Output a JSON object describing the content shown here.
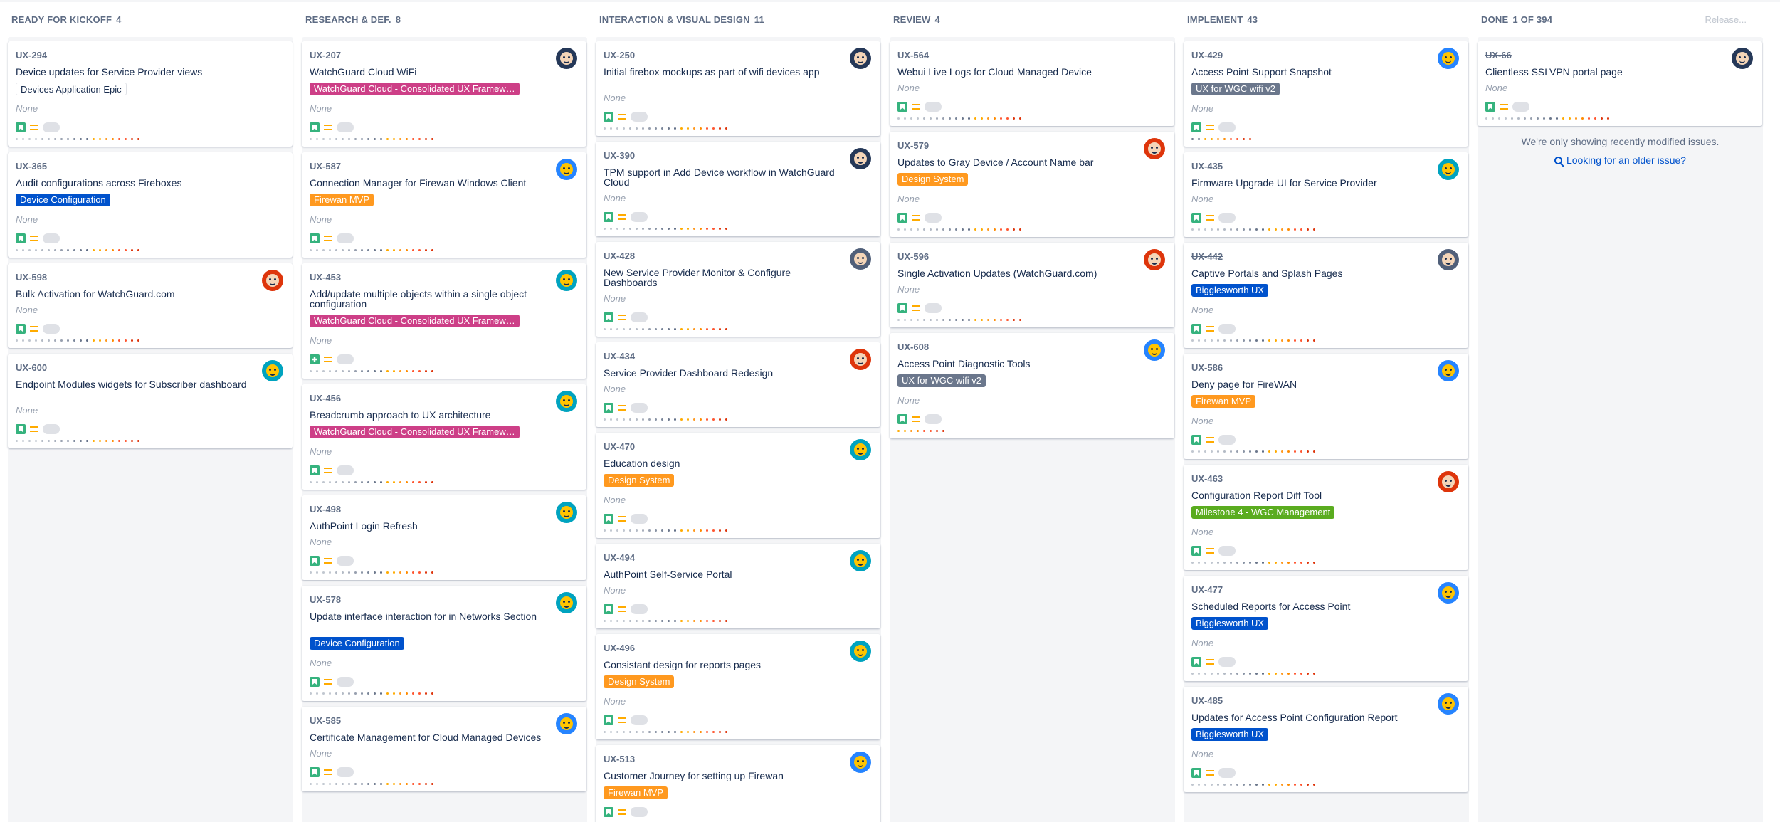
{
  "colors": {
    "dev_config": "#0052cc",
    "firewan_mvp": "#ff991f",
    "watchguard_cloud": "#cd3f87",
    "wgc_wifi": "#6b778c",
    "design_system": "#ff991f",
    "bigglesworth": "#0052cc",
    "milestone4": "#5aac1f"
  },
  "columns": [
    {
      "title": "READY FOR KICKOFF",
      "count": "4",
      "cards": [
        {
          "key": "UX-294",
          "summary": "Device updates for Service Provider views",
          "epic": "Devices Application Epic",
          "epic_style": "outline",
          "none": "None",
          "avatar": "",
          "dots": 20
        },
        {
          "key": "UX-365",
          "summary": "Audit configurations across Fireboxes",
          "epic": "Device Configuration",
          "epic_style": "dev_config",
          "none": "None",
          "avatar": "",
          "dots": 20
        },
        {
          "key": "UX-598",
          "summary": "Bulk Activation for WatchGuard.com",
          "epic": "",
          "none": "None",
          "avatar": "red",
          "dots": 20
        },
        {
          "key": "UX-600",
          "summary": "Endpoint Modules widgets for Subscriber dashboard",
          "epic": "",
          "none": "None",
          "avatar": "teal",
          "dots": 20
        }
      ]
    },
    {
      "title": "RESEARCH & DEF.",
      "count": "8",
      "cards": [
        {
          "key": "UX-207",
          "summary": "WatchGuard Cloud WiFi",
          "epic": "WatchGuard Cloud - Consolidated UX Framew…",
          "epic_style": "watchguard_cloud",
          "none": "None",
          "avatar": "navy",
          "dots": 20
        },
        {
          "key": "UX-587",
          "summary": "Connection Manager for Firewan Windows Client",
          "epic": "Firewan MVP",
          "epic_style": "firewan_mvp",
          "none": "None",
          "avatar": "blue",
          "dots": 20
        },
        {
          "key": "UX-453",
          "summary": "Add/update multiple objects within a single object configuration",
          "epic": "WatchGuard Cloud - Consolidated UX Framew…",
          "epic_style": "watchguard_cloud",
          "none": "None",
          "avatar": "teal",
          "dots": 20,
          "icon": "plus"
        },
        {
          "key": "UX-456",
          "summary": "Breadcrumb approach to UX architecture",
          "epic": "WatchGuard Cloud - Consolidated UX Framew…",
          "epic_style": "watchguard_cloud",
          "none": "None",
          "avatar": "teal",
          "dots": 20
        },
        {
          "key": "UX-498",
          "summary": "AuthPoint Login Refresh",
          "epic": "",
          "none": "None",
          "avatar": "teal",
          "dots": 20
        },
        {
          "key": "UX-578",
          "summary": "Update interface interaction for in Networks Section",
          "epic": "Device Configuration",
          "epic_style": "dev_config",
          "none": "None",
          "avatar": "teal",
          "dots": 20
        },
        {
          "key": "UX-585",
          "summary": "Certificate Management for Cloud Managed Devices",
          "epic": "",
          "none": "None",
          "avatar": "blue",
          "dots": 20
        }
      ]
    },
    {
      "title": "INTERACTION & VISUAL DESIGN",
      "count": "11",
      "cards": [
        {
          "key": "UX-250",
          "summary": "Initial firebox mockups as part of wifi devices app",
          "epic": "",
          "none": "None",
          "avatar": "navy",
          "dots": 20
        },
        {
          "key": "UX-390",
          "summary": "TPM support in Add Device workflow in WatchGuard Cloud",
          "epic": "",
          "none": "None",
          "avatar": "navy",
          "dots": 20
        },
        {
          "key": "UX-428",
          "summary": "New Service Provider Monitor & Configure Dashboards",
          "epic": "",
          "none": "None",
          "avatar": "dark",
          "dots": 20
        },
        {
          "key": "UX-434",
          "summary": "Service Provider Dashboard Redesign",
          "epic": "",
          "none": "None",
          "avatar": "red",
          "dots": 20
        },
        {
          "key": "UX-470",
          "summary": "Education design",
          "epic": "Design System",
          "epic_style": "design_system",
          "none": "None",
          "avatar": "teal",
          "dots": 20
        },
        {
          "key": "UX-494",
          "summary": "AuthPoint Self-Service Portal",
          "epic": "",
          "none": "None",
          "avatar": "teal",
          "dots": 20
        },
        {
          "key": "UX-496",
          "summary": "Consistant design for reports pages",
          "epic": "Design System",
          "epic_style": "design_system",
          "none": "None",
          "avatar": "teal",
          "dots": 20
        },
        {
          "key": "UX-513",
          "summary": "Customer Journey for setting up Firewan",
          "epic": "Firewan MVP",
          "epic_style": "firewan_mvp",
          "none": "",
          "avatar": "blue",
          "dots": 0
        }
      ]
    },
    {
      "title": "REVIEW",
      "count": "4",
      "cards": [
        {
          "key": "UX-564",
          "summary": "Webui Live Logs for Cloud Managed Device",
          "epic": "",
          "none": "None",
          "avatar": "",
          "dots": 20
        },
        {
          "key": "UX-579",
          "summary": "Updates to Gray Device / Account Name bar",
          "epic": "Design System",
          "epic_style": "design_system",
          "none": "None",
          "avatar": "red",
          "dots": 20
        },
        {
          "key": "UX-596",
          "summary": "Single Activation Updates (WatchGuard.com)",
          "epic": "",
          "none": "None",
          "avatar": "red",
          "dots": 20
        },
        {
          "key": "UX-608",
          "summary": "Access Point Diagnostic Tools",
          "epic": "UX for WGC wifi v2",
          "epic_style": "wgc_wifi",
          "none": "None",
          "avatar": "blue",
          "dots": 8
        }
      ]
    },
    {
      "title": "IMPLEMENT",
      "count": "43",
      "cards": [
        {
          "key": "UX-429",
          "summary": "Access Point Support Snapshot",
          "epic": "UX for WGC wifi v2",
          "epic_style": "wgc_wifi",
          "none": "None",
          "avatar": "blue",
          "dots": 10
        },
        {
          "key": "UX-435",
          "summary": "Firmware Upgrade UI for Service Provider",
          "epic": "",
          "none": "None",
          "avatar": "teal",
          "dots": 20
        },
        {
          "key": "UX-442",
          "summary": "Captive Portals and Splash Pages",
          "epic": "Bigglesworth UX",
          "epic_style": "bigglesworth",
          "none": "None",
          "avatar": "dark",
          "dots": 20,
          "done": true
        },
        {
          "key": "UX-586",
          "summary": "Deny page for FireWAN",
          "epic": "Firewan MVP",
          "epic_style": "firewan_mvp",
          "none": "None",
          "avatar": "blue",
          "dots": 20
        },
        {
          "key": "UX-463",
          "summary": "Configuration Report Diff Tool",
          "epic": "Milestone 4 - WGC Management",
          "epic_style": "milestone4",
          "none": "None",
          "avatar": "red",
          "dots": 20
        },
        {
          "key": "UX-477",
          "summary": "Scheduled Reports for Access Point",
          "epic": "Bigglesworth UX",
          "epic_style": "bigglesworth",
          "none": "None",
          "avatar": "blue",
          "dots": 20
        },
        {
          "key": "UX-485",
          "summary": "Updates for Access Point Configuration Report",
          "epic": "Bigglesworth UX",
          "epic_style": "bigglesworth",
          "none": "None",
          "avatar": "blue",
          "dots": 20
        }
      ]
    },
    {
      "title": "DONE",
      "count": "1 OF 394",
      "release": "Release...",
      "cards": [
        {
          "key": "UX-66",
          "summary": "Clientless SSLVPN portal page",
          "epic": "",
          "none": "None",
          "avatar": "navy",
          "dots": 20,
          "done": true
        }
      ],
      "info": "We're only showing recently modified issues.",
      "older": "Looking for an older issue?"
    }
  ]
}
